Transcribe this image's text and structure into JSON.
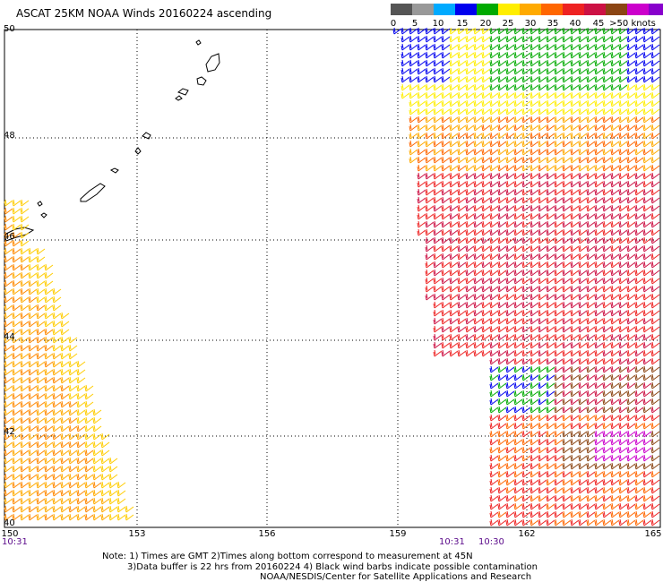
{
  "title": "ASCAT 25KM NOAA Winds 20160224 ascending",
  "legend": {
    "colors": [
      "#555555",
      "#999999",
      "#00aaff",
      "#0000ee",
      "#00aa00",
      "#ffee00",
      "#ffaa00",
      "#ff6600",
      "#ee2222",
      "#cc1144",
      "#8b4513",
      "#cc00cc",
      "#8800cc",
      "#3300aa"
    ],
    "labels": [
      "0",
      "5",
      "10",
      "15",
      "20",
      "25",
      "30",
      "35",
      "40",
      "45",
      ">50 knots"
    ]
  },
  "lat_labels": [
    "50",
    "48",
    "46",
    "44",
    "42",
    "40"
  ],
  "lon_labels": [
    "150",
    "153",
    "156",
    "159",
    "162",
    "165"
  ],
  "times": [
    "10:31",
    "10:31",
    "10:30"
  ],
  "notes": [
    "Note: 1) Times are GMT 2)Times along bottom correspond to measurement at 45N",
    "3)Data buffer is 22 hrs from 20160224 4) Black wind barbs indicate possible contamination",
    "NOAA/NESDIS/Center for Satellite Applications and Research"
  ],
  "map": {
    "projection": "equirectangular",
    "lat_range": [
      40,
      50
    ],
    "lon_range": [
      150,
      165
    ],
    "grid": true,
    "coastline": "Kuril Islands",
    "wind_swaths": [
      "left swath (orange/yellow)",
      "right swath (yellow/red/green/blue)"
    ]
  }
}
